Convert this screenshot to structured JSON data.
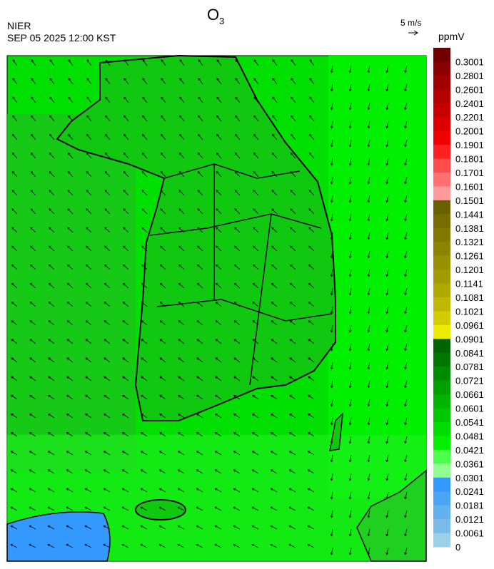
{
  "header": {
    "title_main": "O",
    "title_subscript": "3",
    "agency": "NIER",
    "datetime": "SEP 05 2025 12:00 KST",
    "wind_scale": "5 m/s"
  },
  "colorbar": {
    "unit": "ppmV",
    "labels": [
      "0.3001",
      "0.2801",
      "0.2601",
      "0.2401",
      "0.2201",
      "0.2001",
      "0.1901",
      "0.1801",
      "0.1701",
      "0.1601",
      "0.1501",
      "0.1441",
      "0.1381",
      "0.1321",
      "0.1261",
      "0.1201",
      "0.1141",
      "0.1081",
      "0.1021",
      "0.0961",
      "0.0901",
      "0.0841",
      "0.0781",
      "0.0721",
      "0.0661",
      "0.0601",
      "0.0541",
      "0.0481",
      "0.0421",
      "0.0361",
      "0.0301",
      "0.0241",
      "0.0181",
      "0.0121",
      "0.0061",
      "0"
    ],
    "colors": [
      "#700000",
      "#8a0000",
      "#a00000",
      "#b40000",
      "#c80000",
      "#dc0000",
      "#f00000",
      "#ff2020",
      "#ff4c4c",
      "#ff7070",
      "#ff9a9a",
      "#6b6000",
      "#766c00",
      "#817800",
      "#8c8400",
      "#979000",
      "#a29c00",
      "#b0aa00",
      "#c0b800",
      "#d4cc00",
      "#ecec00",
      "#006400",
      "#007800",
      "#008c00",
      "#00a000",
      "#00b400",
      "#00c800",
      "#00dc00",
      "#00f000",
      "#4cff4c",
      "#90ff90",
      "#3399ff",
      "#4aa4f4",
      "#62b0ee",
      "#7abce8",
      "#9ccfe8"
    ]
  }
}
